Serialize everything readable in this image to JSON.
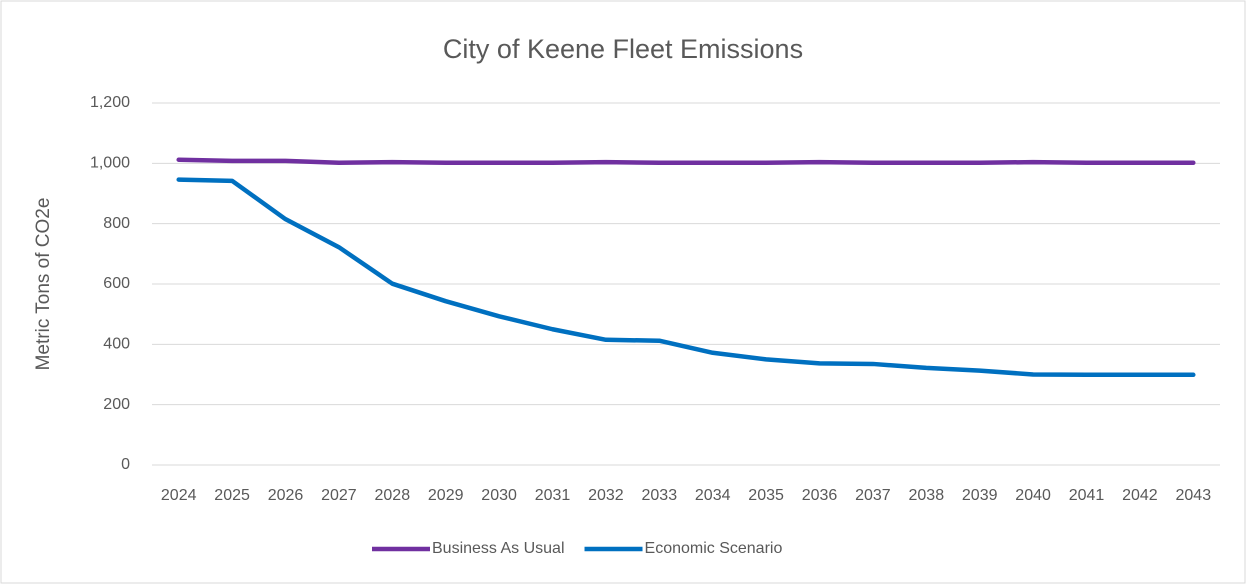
{
  "chart_data": {
    "type": "line",
    "title": "City of Keene Fleet Emissions",
    "y_label": "Metric Tons of CO2e",
    "categories": [
      "2024",
      "2025",
      "2026",
      "2027",
      "2028",
      "2029",
      "2030",
      "2031",
      "2032",
      "2033",
      "2034",
      "2035",
      "2036",
      "2037",
      "2038",
      "2039",
      "2040",
      "2041",
      "2042",
      "2043"
    ],
    "series": [
      {
        "name": "Business As Usual",
        "color": "#7030a0",
        "values": [
          1012,
          1008,
          1008,
          1002,
          1004,
          1002,
          1002,
          1002,
          1004,
          1002,
          1002,
          1002,
          1004,
          1002,
          1002,
          1002,
          1004,
          1002,
          1002,
          1002
        ]
      },
      {
        "name": "Economic Scenario",
        "color": "#0070c0",
        "values": [
          946,
          942,
          815,
          722,
          601,
          543,
          493,
          450,
          415,
          412,
          372,
          350,
          337,
          335,
          322,
          313,
          300,
          299,
          299,
          299
        ]
      }
    ],
    "ylim": [
      0,
      1200
    ],
    "yticks": [
      0,
      200,
      400,
      600,
      800,
      {
        "value": 1000,
        "label": "1,000"
      },
      {
        "value": 1200,
        "label": "1,200"
      }
    ],
    "grid": true,
    "legend": "bottom"
  }
}
